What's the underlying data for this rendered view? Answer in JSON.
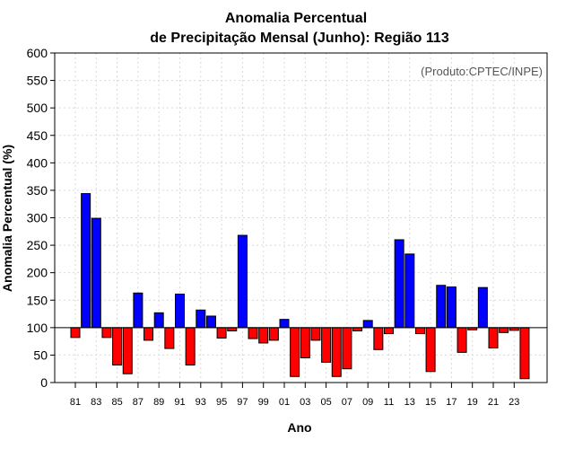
{
  "chart_data": {
    "type": "bar",
    "title": [
      "Anomalia Percentual",
      "de Precipitação Mensal (Junho): Região 113"
    ],
    "ylabel": "Anomalia Percentual (%)",
    "xlabel": "Ano",
    "note": "(Produto:CPTEC/INPE)",
    "ylim": [
      0,
      600
    ],
    "yticks": [
      0,
      50,
      100,
      150,
      200,
      250,
      300,
      350,
      400,
      450,
      500,
      550,
      600
    ],
    "baseline": 100,
    "grid": true,
    "colors": {
      "above": "#0000ff",
      "below": "#ff0000",
      "edge": "#000000",
      "grid": "#d9d9d9"
    },
    "categories": [
      "81",
      "82",
      "83",
      "84",
      "85",
      "86",
      "87",
      "88",
      "89",
      "90",
      "91",
      "92",
      "93",
      "94",
      "95",
      "96",
      "97",
      "98",
      "99",
      "00",
      "01",
      "02",
      "03",
      "04",
      "05",
      "06",
      "07",
      "08",
      "09",
      "10",
      "11",
      "12",
      "13",
      "14",
      "15",
      "16",
      "17",
      "18",
      "19",
      "20",
      "21",
      "22",
      "23",
      "24"
    ],
    "xtick_labels": [
      "81",
      "83",
      "85",
      "87",
      "89",
      "91",
      "93",
      "95",
      "97",
      "99",
      "01",
      "03",
      "05",
      "07",
      "09",
      "11",
      "13",
      "15",
      "17",
      "19",
      "21",
      "23"
    ],
    "values": [
      82,
      344,
      299,
      82,
      32,
      16,
      163,
      77,
      127,
      62,
      161,
      32,
      132,
      121,
      81,
      94,
      268,
      80,
      72,
      77,
      115,
      11,
      45,
      77,
      37,
      11,
      25,
      94,
      113,
      60,
      89,
      260,
      234,
      89,
      20,
      177,
      174,
      55,
      96,
      173,
      63,
      91,
      95,
      7
    ]
  }
}
